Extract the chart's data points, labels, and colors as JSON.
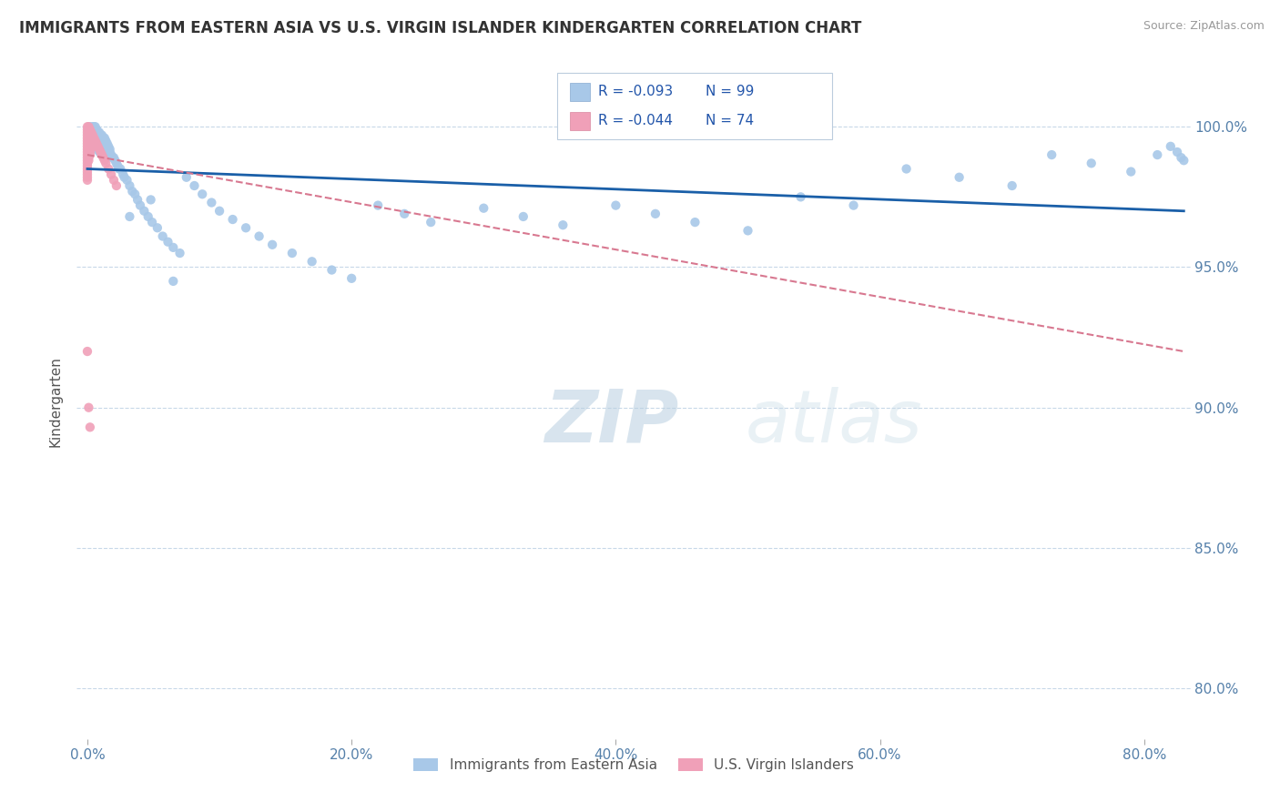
{
  "title": "IMMIGRANTS FROM EASTERN ASIA VS U.S. VIRGIN ISLANDER KINDERGARTEN CORRELATION CHART",
  "source": "Source: ZipAtlas.com",
  "ylabel": "Kindergarten",
  "x_tick_labels": [
    "0.0%",
    "20.0%",
    "40.0%",
    "60.0%",
    "80.0%"
  ],
  "y_tick_labels": [
    "80.0%",
    "85.0%",
    "90.0%",
    "95.0%",
    "100.0%"
  ],
  "xlim": [
    -0.008,
    0.835
  ],
  "ylim": [
    0.782,
    1.022
  ],
  "legend_r1": "R = -0.093",
  "legend_n1": "N = 99",
  "legend_r2": "R = -0.044",
  "legend_n2": "N = 74",
  "legend_label1": "Immigrants from Eastern Asia",
  "legend_label2": "U.S. Virgin Islanders",
  "blue_color": "#a8c8e8",
  "pink_color": "#f0a0b8",
  "line_blue": "#1a5fa8",
  "line_pink": "#d87890",
  "watermark_zip": "ZIP",
  "watermark_atlas": "atlas",
  "blue_scatter_x": [
    0.001,
    0.002,
    0.002,
    0.003,
    0.003,
    0.004,
    0.004,
    0.004,
    0.005,
    0.005,
    0.005,
    0.006,
    0.006,
    0.006,
    0.007,
    0.007,
    0.007,
    0.008,
    0.008,
    0.009,
    0.009,
    0.009,
    0.01,
    0.01,
    0.011,
    0.011,
    0.012,
    0.012,
    0.013,
    0.013,
    0.014,
    0.014,
    0.015,
    0.016,
    0.017,
    0.017,
    0.018,
    0.019,
    0.02,
    0.021,
    0.022,
    0.023,
    0.024,
    0.025,
    0.027,
    0.028,
    0.03,
    0.032,
    0.034,
    0.036,
    0.038,
    0.04,
    0.043,
    0.046,
    0.049,
    0.053,
    0.057,
    0.061,
    0.065,
    0.07,
    0.075,
    0.081,
    0.087,
    0.094,
    0.1,
    0.11,
    0.12,
    0.13,
    0.14,
    0.155,
    0.17,
    0.185,
    0.2,
    0.22,
    0.24,
    0.26,
    0.3,
    0.33,
    0.36,
    0.4,
    0.43,
    0.46,
    0.5,
    0.54,
    0.58,
    0.62,
    0.66,
    0.7,
    0.73,
    0.76,
    0.79,
    0.81,
    0.82,
    0.825,
    0.828,
    0.83,
    0.032,
    0.048,
    0.065
  ],
  "blue_scatter_y": [
    0.998,
    1.0,
    0.996,
    0.999,
    0.994,
    1.0,
    0.997,
    0.993,
    1.0,
    0.998,
    0.994,
    1.0,
    0.997,
    0.993,
    0.999,
    0.996,
    0.992,
    0.998,
    0.994,
    0.998,
    0.995,
    0.991,
    0.997,
    0.993,
    0.997,
    0.993,
    0.996,
    0.992,
    0.996,
    0.992,
    0.995,
    0.991,
    0.994,
    0.993,
    0.992,
    0.991,
    0.99,
    0.989,
    0.989,
    0.988,
    0.987,
    0.986,
    0.985,
    0.985,
    0.983,
    0.982,
    0.981,
    0.979,
    0.977,
    0.976,
    0.974,
    0.972,
    0.97,
    0.968,
    0.966,
    0.964,
    0.961,
    0.959,
    0.957,
    0.955,
    0.982,
    0.979,
    0.976,
    0.973,
    0.97,
    0.967,
    0.964,
    0.961,
    0.958,
    0.955,
    0.952,
    0.949,
    0.946,
    0.972,
    0.969,
    0.966,
    0.971,
    0.968,
    0.965,
    0.972,
    0.969,
    0.966,
    0.963,
    0.975,
    0.972,
    0.985,
    0.982,
    0.979,
    0.99,
    0.987,
    0.984,
    0.99,
    0.993,
    0.991,
    0.989,
    0.988,
    0.968,
    0.974,
    0.945
  ],
  "pink_scatter_x": [
    0.0,
    0.0,
    0.0,
    0.0,
    0.0,
    0.0,
    0.0,
    0.0,
    0.0,
    0.0,
    0.0,
    0.0,
    0.0,
    0.0,
    0.0,
    0.0,
    0.0,
    0.0,
    0.0,
    0.0,
    0.001,
    0.001,
    0.001,
    0.001,
    0.001,
    0.001,
    0.001,
    0.001,
    0.001,
    0.001,
    0.001,
    0.001,
    0.001,
    0.002,
    0.002,
    0.002,
    0.002,
    0.002,
    0.002,
    0.002,
    0.002,
    0.002,
    0.002,
    0.003,
    0.003,
    0.003,
    0.003,
    0.003,
    0.003,
    0.004,
    0.004,
    0.004,
    0.004,
    0.005,
    0.005,
    0.005,
    0.006,
    0.006,
    0.007,
    0.007,
    0.008,
    0.009,
    0.01,
    0.011,
    0.012,
    0.013,
    0.014,
    0.016,
    0.018,
    0.02,
    0.022,
    0.0,
    0.001,
    0.002
  ],
  "pink_scatter_y": [
    1.0,
    0.999,
    0.998,
    0.997,
    0.996,
    0.995,
    0.994,
    0.993,
    0.992,
    0.991,
    0.99,
    0.989,
    0.988,
    0.987,
    0.986,
    0.985,
    0.984,
    0.983,
    0.982,
    0.981,
    1.0,
    0.999,
    0.998,
    0.997,
    0.996,
    0.995,
    0.994,
    0.993,
    0.992,
    0.991,
    0.99,
    0.989,
    0.988,
    0.999,
    0.998,
    0.997,
    0.996,
    0.995,
    0.994,
    0.993,
    0.992,
    0.991,
    0.99,
    0.998,
    0.997,
    0.996,
    0.995,
    0.994,
    0.993,
    0.997,
    0.996,
    0.995,
    0.994,
    0.996,
    0.995,
    0.994,
    0.995,
    0.994,
    0.994,
    0.993,
    0.993,
    0.992,
    0.991,
    0.99,
    0.989,
    0.988,
    0.987,
    0.985,
    0.983,
    0.981,
    0.979,
    0.92,
    0.9,
    0.893
  ]
}
